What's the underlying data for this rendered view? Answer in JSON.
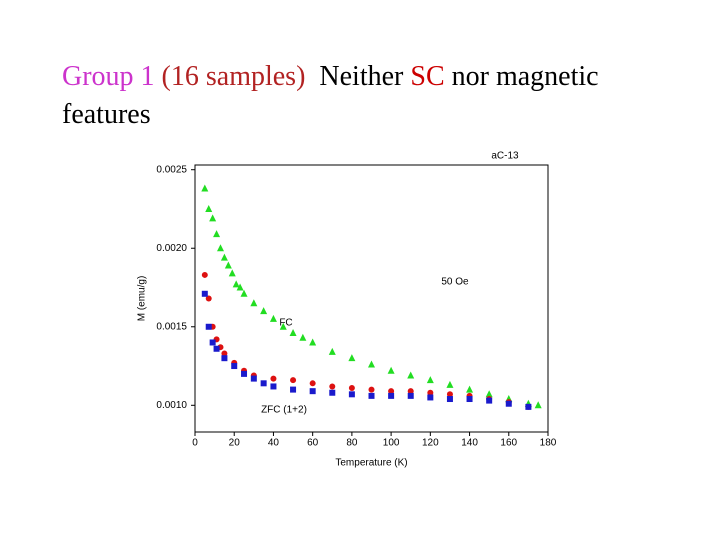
{
  "slide": {
    "title_parts": [
      {
        "text": "Group 1",
        "color": "#cc33cc"
      },
      {
        "text": " (16 samples)",
        "color": "#b22222"
      },
      {
        "text": "  Neither ",
        "color": "#000000"
      },
      {
        "text": "SC",
        "color": "#cc0000"
      },
      {
        "text": " nor magnetic features",
        "color": "#000000"
      }
    ]
  },
  "chart_data": {
    "type": "scatter",
    "xlabel": "Temperature (K)",
    "ylabel": "M (emu/g)",
    "annotations": [
      "aC-13",
      "50 Oe",
      "FC",
      "ZFC (1+2)"
    ],
    "xlim": [
      0,
      180
    ],
    "xticks": [
      0,
      20,
      40,
      60,
      80,
      100,
      120,
      140,
      160,
      180
    ],
    "ylim": [
      0.00083,
      0.00253
    ],
    "yticks": [
      {
        "value": 0.001,
        "label": "0.0010"
      },
      0.0015,
      {
        "value": 0.002,
        "label": "0.0020"
      },
      0.0025
    ],
    "series": [
      {
        "color": "#22dd22",
        "marker": "triangle",
        "x": [
          5,
          7,
          9,
          11,
          13,
          15,
          17,
          19,
          21,
          23,
          25,
          30,
          35,
          40,
          45,
          50,
          55,
          60,
          70,
          80,
          90,
          100,
          110,
          120,
          130,
          140,
          150,
          160,
          170,
          175
        ],
        "values": [
          0.00238,
          0.00225,
          0.00219,
          0.00209,
          0.002,
          0.00194,
          0.00189,
          0.00184,
          0.00177,
          0.00175,
          0.00171,
          0.00165,
          0.0016,
          0.00155,
          0.0015,
          0.00146,
          0.00143,
          0.0014,
          0.00134,
          0.0013,
          0.00126,
          0.00122,
          0.00119,
          0.00116,
          0.00113,
          0.0011,
          0.00107,
          0.00104,
          0.00101,
          0.001
        ]
      },
      {
        "color": "#dd1111",
        "marker": "circle",
        "x": [
          5,
          7,
          9,
          11,
          13,
          15,
          20,
          25,
          30,
          40,
          50,
          60,
          70,
          80,
          90,
          100,
          110,
          120,
          130,
          140,
          150,
          160,
          170
        ],
        "values": [
          0.00183,
          0.00168,
          0.0015,
          0.00142,
          0.00137,
          0.00133,
          0.00127,
          0.00122,
          0.00119,
          0.00117,
          0.00116,
          0.00114,
          0.00112,
          0.00111,
          0.0011,
          0.00109,
          0.00109,
          0.00108,
          0.00107,
          0.00106,
          0.00104,
          0.00102,
          0.00099
        ]
      },
      {
        "color": "#1a1acc",
        "marker": "square",
        "x": [
          5,
          7,
          9,
          11,
          15,
          20,
          25,
          30,
          35,
          40,
          50,
          60,
          70,
          80,
          90,
          100,
          110,
          120,
          130,
          140,
          150,
          160,
          170
        ],
        "values": [
          0.00171,
          0.0015,
          0.0014,
          0.00136,
          0.0013,
          0.00125,
          0.0012,
          0.00117,
          0.00114,
          0.00112,
          0.0011,
          0.00109,
          0.00108,
          0.00107,
          0.00106,
          0.00106,
          0.00106,
          0.00105,
          0.00104,
          0.00104,
          0.00103,
          0.00101,
          0.00099
        ]
      }
    ]
  }
}
